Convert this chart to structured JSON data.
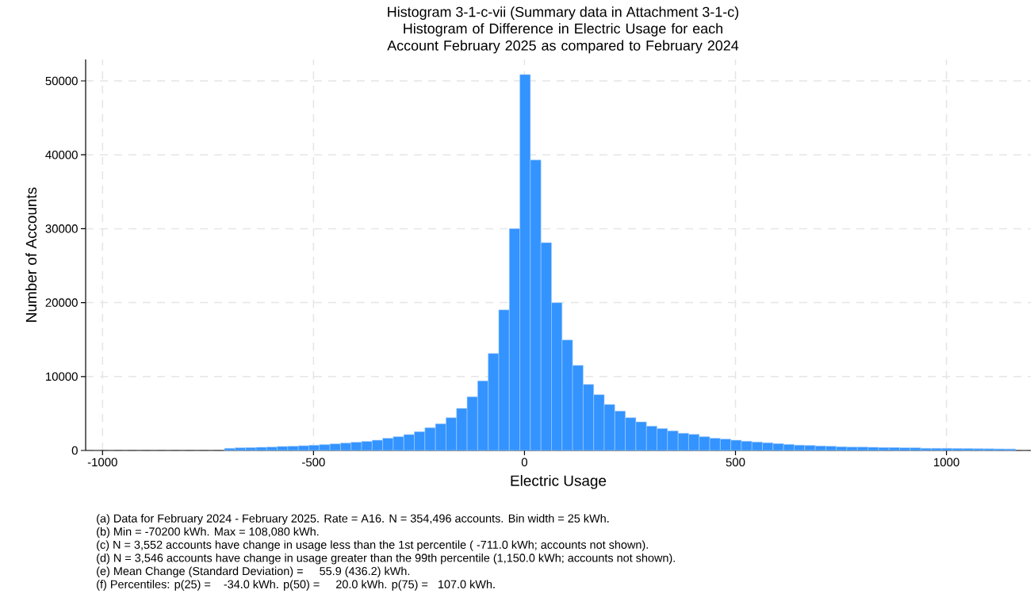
{
  "chart_data": {
    "type": "histogram",
    "title": "Histogram 3-1-c-vii (Summary data in Attachment 3-1-c)",
    "subtitle": "Histogram of Difference in Electric Usage for each Account February 2025 as compared to February 2024",
    "xlabel": "Electric Usage",
    "ylabel": "Number of Accounts",
    "bins": [
      -711,
      -686,
      -661,
      -636,
      -611,
      -586,
      -561,
      -536,
      -511,
      -486,
      -461,
      -436,
      -411,
      -386,
      -361,
      -336,
      -311,
      -286,
      -261,
      -236,
      -211,
      -186,
      -161,
      -136,
      -111,
      -86,
      -61,
      -36,
      -11,
      14,
      39,
      64,
      89,
      114,
      139,
      164,
      189,
      214,
      239,
      264,
      289,
      314,
      339,
      364,
      389,
      414,
      439,
      464,
      489,
      514,
      539,
      564,
      589,
      614,
      639,
      664,
      689,
      714,
      739,
      764,
      789,
      814,
      839,
      864,
      889,
      914,
      939,
      964,
      989,
      1014,
      1039,
      1064,
      1089,
      1114,
      1139,
      1164
    ],
    "values": [
      290,
      360,
      390,
      430,
      460,
      540,
      570,
      640,
      710,
      790,
      890,
      1000,
      1110,
      1220,
      1390,
      1650,
      1860,
      2150,
      2540,
      3080,
      3610,
      4430,
      5690,
      7260,
      9410,
      13120,
      19020,
      30010,
      50860,
      39300,
      28110,
      19990,
      14950,
      11510,
      8940,
      7550,
      6220,
      5330,
      4430,
      3860,
      3290,
      2970,
      2650,
      2330,
      2180,
      1860,
      1650,
      1540,
      1390,
      1250,
      1140,
      1040,
      930,
      820,
      720,
      680,
      610,
      570,
      500,
      460,
      460,
      430,
      400,
      400,
      360,
      360,
      290,
      290,
      290,
      270,
      260,
      240,
      230,
      210,
      200
    ],
    "color": "#3393ff",
    "xlim": [
      -1040,
      1200
    ],
    "ylim": [
      0,
      52900
    ],
    "xticks": [
      -1000,
      -500,
      0,
      500,
      1000
    ],
    "yticks": [
      0,
      10000,
      20000,
      30000,
      40000,
      50000
    ],
    "grid": true,
    "annotations": [
      "(a) Data for February 2024 - February 2025. Rate = A16. N = 354,496 accounts. Bin width = 25 kWh.",
      "(b) Min = -70200 kWh. Max = 108,080 kWh.",
      "(c) N = 3,552 accounts have change in usage less than the 1st percentile ( -711.0 kWh; accounts not shown).",
      "(d) N = 3,546 accounts have change in usage greater than the 99th percentile (1,150.0 kWh; accounts not shown).",
      "(e) Mean Change (Standard Deviation) =     55.9 (436.2) kWh.",
      "(f) Percentiles: p(25) =    -34.0 kWh. p(50) =     20.0 kWh. p(75) =   107.0 kWh."
    ]
  }
}
